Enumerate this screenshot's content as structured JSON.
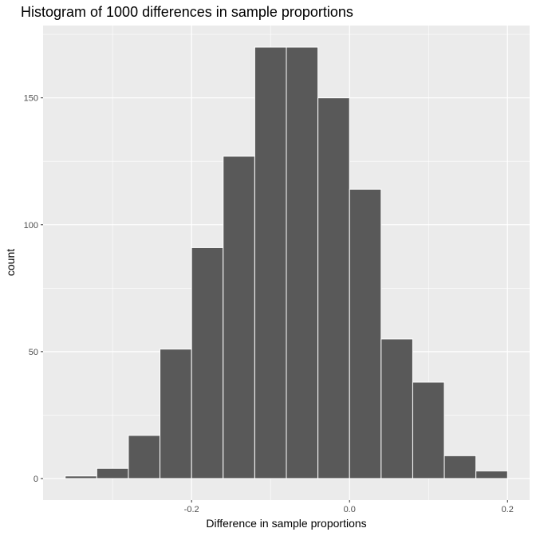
{
  "chart_data": {
    "type": "histogram",
    "title": "Histogram of 1000 differences in sample proportions",
    "xlabel": "Difference in sample proportions",
    "ylabel": "count",
    "bin_width": 0.04,
    "bin_edges": [
      -0.36,
      -0.32,
      -0.28,
      -0.24,
      -0.2,
      -0.16,
      -0.12,
      -0.08,
      -0.04,
      0.0,
      0.04,
      0.08,
      0.12,
      0.16,
      0.2
    ],
    "bin_centers": [
      -0.34,
      -0.3,
      -0.26,
      -0.22,
      -0.18,
      -0.14,
      -0.1,
      -0.06,
      -0.02,
      0.02,
      0.06,
      0.1,
      0.14,
      0.18
    ],
    "values": [
      1,
      4,
      17,
      51,
      91,
      127,
      170,
      170,
      150,
      114,
      55,
      38,
      9,
      3
    ],
    "xlim": [
      -0.388,
      0.228
    ],
    "ylim": [
      -8.5,
      178.5
    ],
    "x_ticks": [
      -0.2,
      0.0,
      0.2
    ],
    "x_tick_labels": [
      "-0.2",
      "0.0",
      "0.2"
    ],
    "x_minor_grid": [
      -0.3,
      -0.1,
      0.1
    ],
    "y_ticks": [
      0,
      50,
      100,
      150
    ],
    "y_tick_labels": [
      "0",
      "50",
      "100",
      "150"
    ],
    "y_minor_grid": [
      25,
      75,
      125,
      175
    ],
    "grid": true,
    "legend": "none",
    "colors": {
      "bar_fill": "#595959",
      "bar_outline": "#ffffff",
      "panel_background": "#ebebeb",
      "grid": "#ffffff"
    }
  }
}
